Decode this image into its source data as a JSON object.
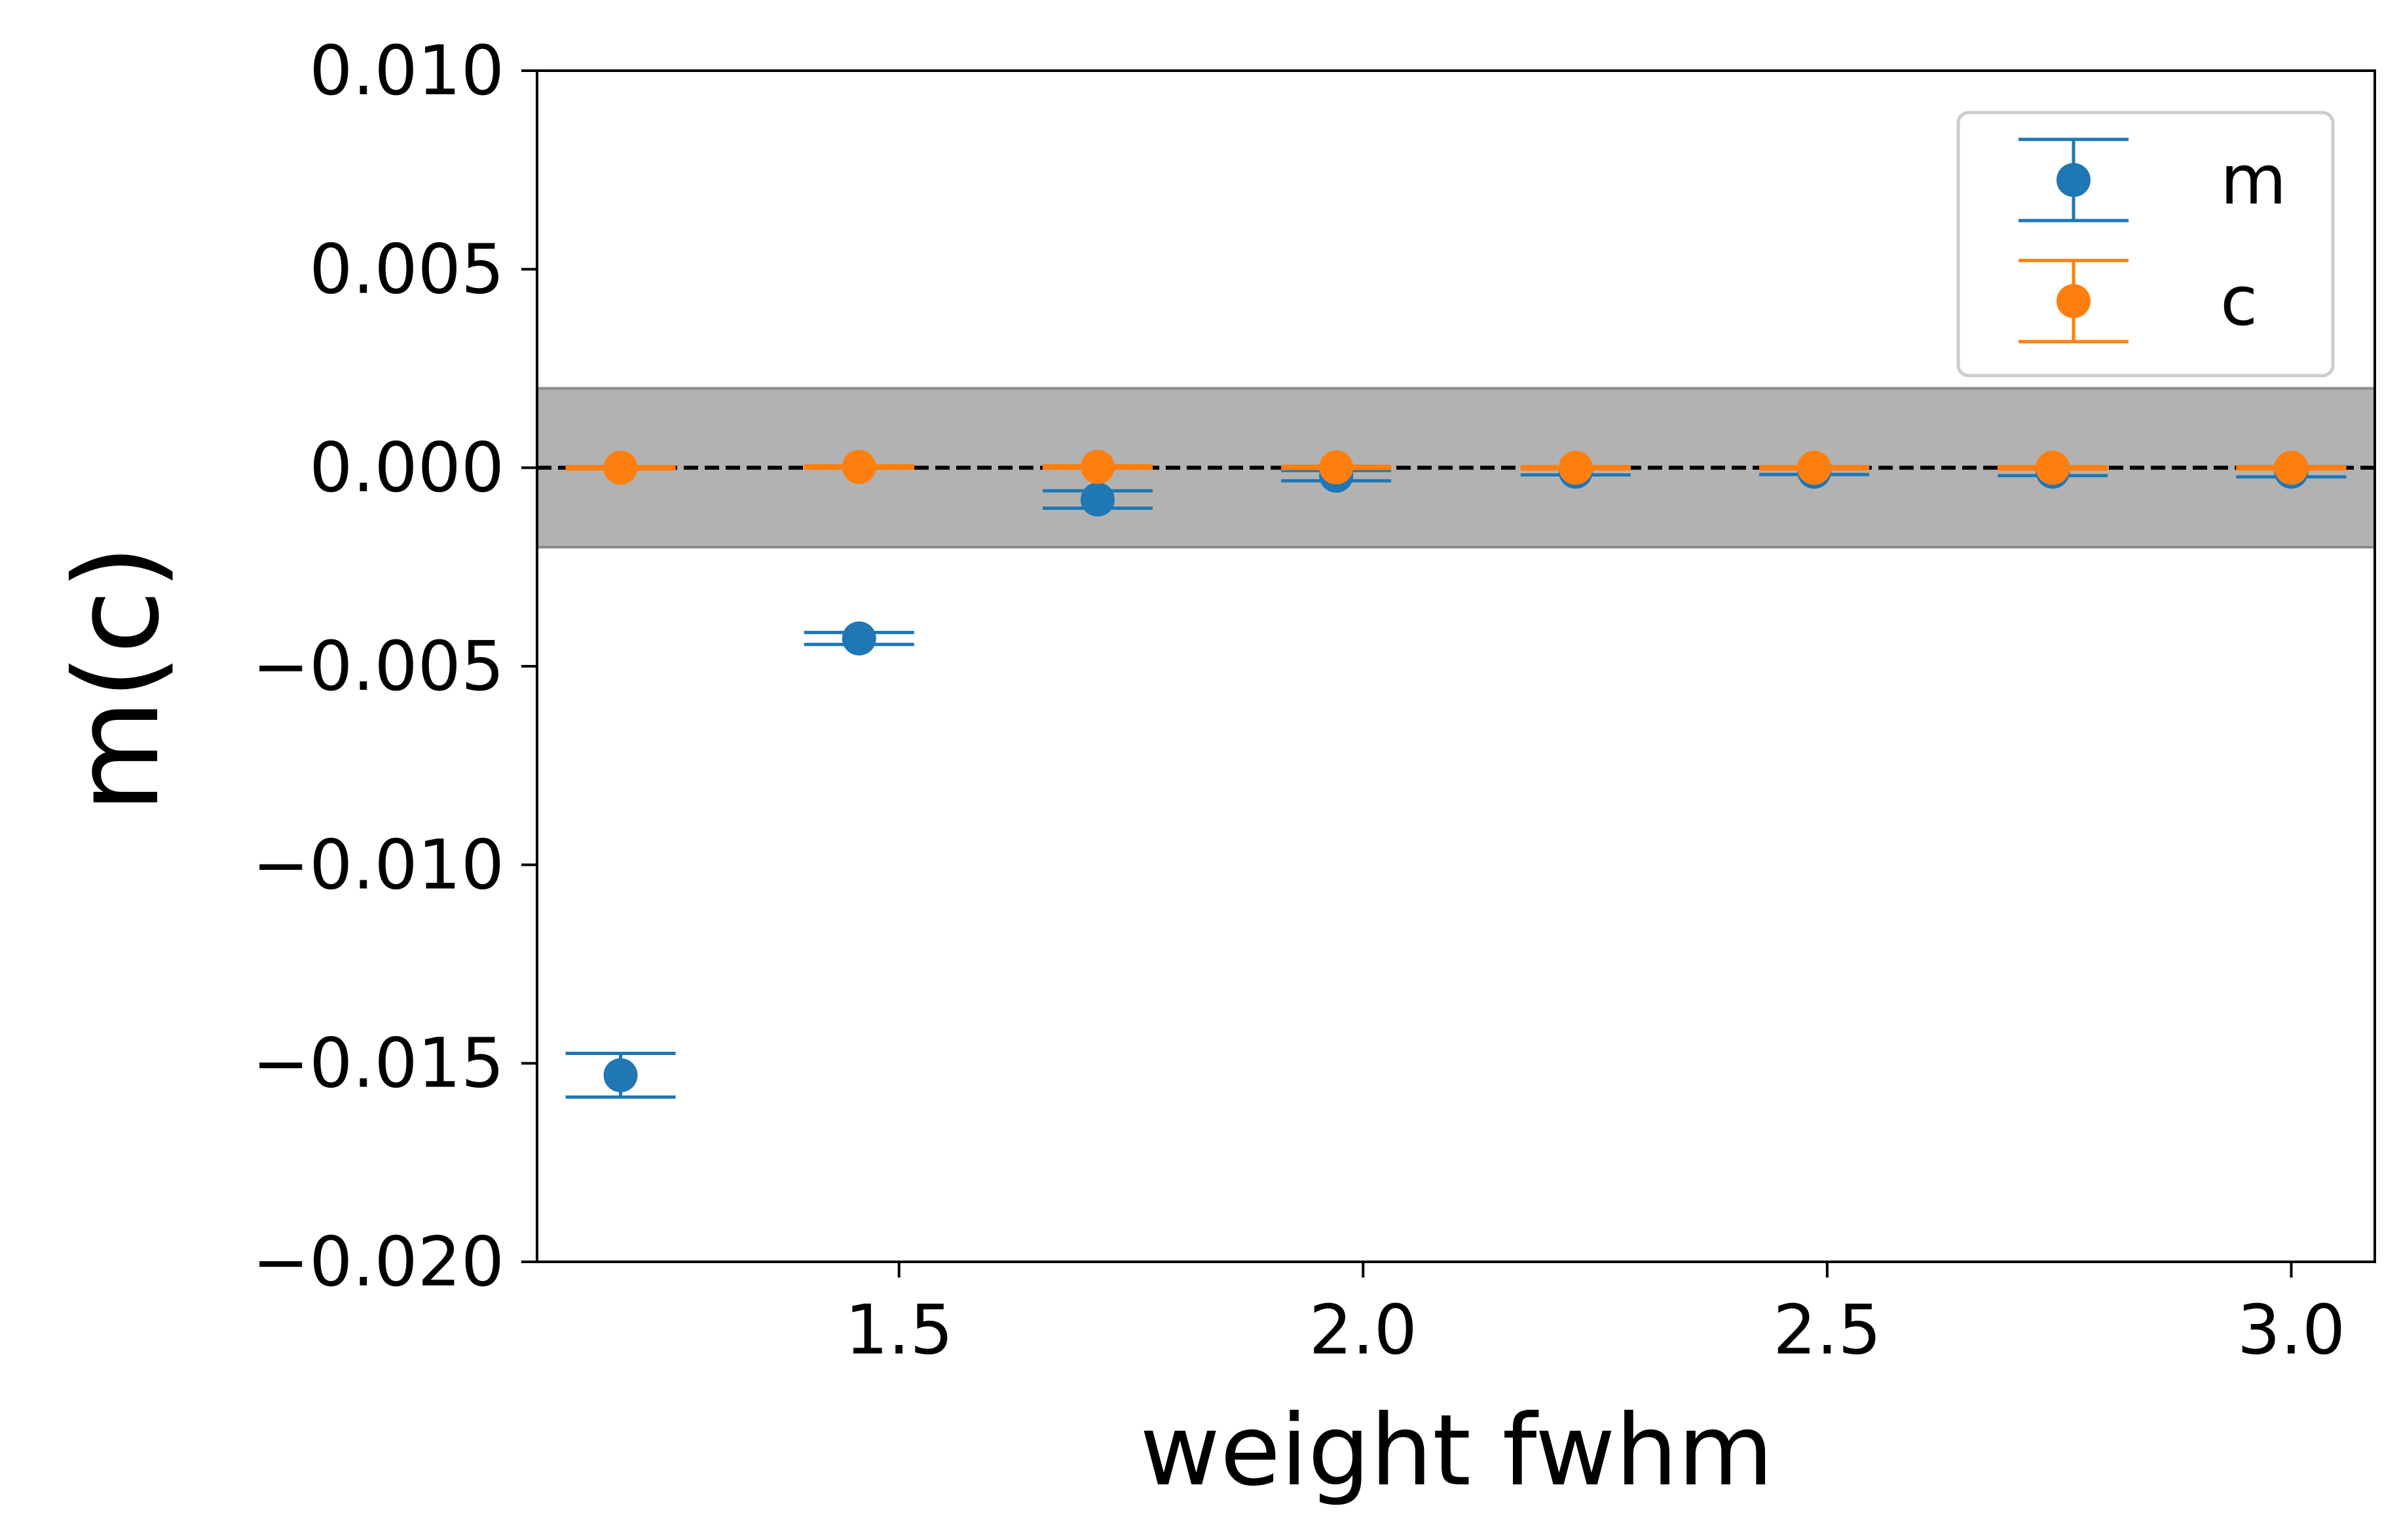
{
  "chart_data": {
    "type": "scatter",
    "title": "",
    "xlabel": "weight fwhm",
    "ylabel": "m(c)",
    "xlim": [
      1.11,
      3.09
    ],
    "ylim": [
      -0.02,
      0.01
    ],
    "x_ticks": [
      1.5,
      2.0,
      2.5,
      3.0
    ],
    "x_tick_labels": [
      "1.5",
      "2.0",
      "2.5",
      "3.0"
    ],
    "y_ticks": [
      0.01,
      0.005,
      0.0,
      -0.005,
      -0.01,
      -0.015,
      -0.02
    ],
    "y_tick_labels": [
      "0.010",
      "0.005",
      "0.000",
      "−0.005",
      "−0.010",
      "−0.015",
      "−0.020"
    ],
    "grid": false,
    "legend_position": "top-right",
    "tolerance_band": {
      "low": -0.002,
      "high": 0.002,
      "color": "#b2b2b2",
      "edge_color": "#8c8c8c"
    },
    "reference_line": {
      "y": 0.0,
      "style": "dashed",
      "color": "#000000"
    },
    "series": [
      {
        "name": "m",
        "color": "#1f77b4",
        "x": [
          1.2,
          1.457,
          1.714,
          1.971,
          2.229,
          2.486,
          2.743,
          3.0
        ],
        "y": [
          -0.0153,
          -0.0043,
          -0.0008,
          -0.0002,
          -0.0001,
          -0.0001,
          -0.0001,
          -0.0001
        ],
        "yerr": [
          0.00055,
          0.00015,
          0.00022,
          0.00013,
          8e-05,
          7e-05,
          0.0001,
          0.00013
        ]
      },
      {
        "name": "c",
        "color": "#ff7f0e",
        "x": [
          1.2,
          1.457,
          1.714,
          1.971,
          2.229,
          2.486,
          2.743,
          3.0
        ],
        "y": [
          0.0,
          2e-05,
          2e-05,
          1e-05,
          0.0,
          0.0,
          0.0,
          0.0
        ],
        "yerr": [
          3e-05,
          3e-05,
          3e-05,
          3e-05,
          3e-05,
          3e-05,
          3e-05,
          3e-05
        ]
      }
    ]
  }
}
